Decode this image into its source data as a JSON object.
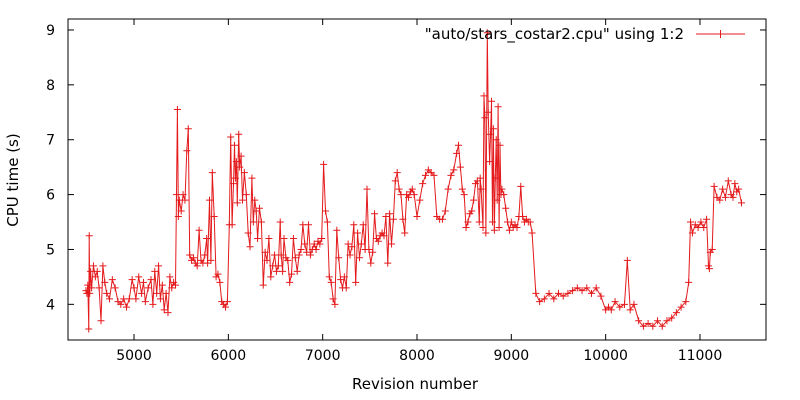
{
  "chart_data": {
    "type": "line",
    "xlabel": "Revision number",
    "ylabel": "CPU time (s)",
    "xlim": [
      4300,
      11700
    ],
    "ylim": [
      3.35,
      9.2
    ],
    "xticks": [
      5000,
      6000,
      7000,
      8000,
      9000,
      10000,
      11000
    ],
    "yticks": [
      4,
      5,
      6,
      7,
      8,
      9
    ],
    "grid": false,
    "legend_position": "top-right",
    "color": "#e41a1c",
    "marker": "plus",
    "series": [
      {
        "name": "\"auto/stars_costar2.cpu\" using 1:2",
        "points": [
          [
            4490,
            4.25
          ],
          [
            4500,
            4.2
          ],
          [
            4510,
            4.35
          ],
          [
            4520,
            3.55
          ],
          [
            4525,
            5.25
          ],
          [
            4530,
            4.2
          ],
          [
            4540,
            4.6
          ],
          [
            4550,
            4.3
          ],
          [
            4570,
            4.7
          ],
          [
            4590,
            4.5
          ],
          [
            4610,
            4.6
          ],
          [
            4630,
            4.3
          ],
          [
            4650,
            3.7
          ],
          [
            4670,
            4.7
          ],
          [
            4690,
            4.4
          ],
          [
            4710,
            4.2
          ],
          [
            4740,
            4.1
          ],
          [
            4770,
            4.45
          ],
          [
            4800,
            4.3
          ],
          [
            4830,
            4.05
          ],
          [
            4860,
            4.0
          ],
          [
            4890,
            4.1
          ],
          [
            4920,
            3.95
          ],
          [
            4950,
            4.1
          ],
          [
            4980,
            4.45
          ],
          [
            5000,
            4.3
          ],
          [
            5020,
            4.1
          ],
          [
            5050,
            4.5
          ],
          [
            5080,
            4.2
          ],
          [
            5100,
            4.4
          ],
          [
            5120,
            4.05
          ],
          [
            5150,
            4.3
          ],
          [
            5180,
            4.45
          ],
          [
            5200,
            4.0
          ],
          [
            5220,
            4.6
          ],
          [
            5240,
            4.2
          ],
          [
            5260,
            4.7
          ],
          [
            5280,
            4.1
          ],
          [
            5300,
            4.35
          ],
          [
            5320,
            3.9
          ],
          [
            5340,
            4.2
          ],
          [
            5360,
            3.85
          ],
          [
            5380,
            4.5
          ],
          [
            5400,
            4.3
          ],
          [
            5420,
            4.4
          ],
          [
            5440,
            4.35
          ],
          [
            5450,
            6.0
          ],
          [
            5460,
            7.55
          ],
          [
            5470,
            5.6
          ],
          [
            5480,
            5.9
          ],
          [
            5500,
            5.7
          ],
          [
            5520,
            6.0
          ],
          [
            5540,
            5.9
          ],
          [
            5560,
            6.8
          ],
          [
            5575,
            7.2
          ],
          [
            5590,
            4.9
          ],
          [
            5610,
            4.8
          ],
          [
            5630,
            4.85
          ],
          [
            5650,
            4.75
          ],
          [
            5670,
            4.7
          ],
          [
            5690,
            5.35
          ],
          [
            5710,
            4.8
          ],
          [
            5730,
            4.75
          ],
          [
            5750,
            4.9
          ],
          [
            5770,
            5.2
          ],
          [
            5780,
            4.75
          ],
          [
            5800,
            5.9
          ],
          [
            5815,
            4.8
          ],
          [
            5830,
            6.4
          ],
          [
            5850,
            5.6
          ],
          [
            5870,
            4.5
          ],
          [
            5890,
            4.55
          ],
          [
            5910,
            4.4
          ],
          [
            5930,
            4.05
          ],
          [
            5950,
            4.0
          ],
          [
            5970,
            3.95
          ],
          [
            5990,
            4.05
          ],
          [
            6010,
            5.45
          ],
          [
            6025,
            7.05
          ],
          [
            6040,
            5.45
          ],
          [
            6055,
            6.2
          ],
          [
            6065,
            6.9
          ],
          [
            6075,
            6.3
          ],
          [
            6085,
            6.6
          ],
          [
            6095,
            5.85
          ],
          [
            6110,
            7.1
          ],
          [
            6120,
            6.5
          ],
          [
            6135,
            6.7
          ],
          [
            6150,
            5.9
          ],
          [
            6170,
            6.4
          ],
          [
            6190,
            6.0
          ],
          [
            6210,
            5.3
          ],
          [
            6230,
            5.05
          ],
          [
            6250,
            6.3
          ],
          [
            6265,
            5.5
          ],
          [
            6280,
            5.9
          ],
          [
            6295,
            5.7
          ],
          [
            6310,
            5.2
          ],
          [
            6330,
            5.75
          ],
          [
            6350,
            5.5
          ],
          [
            6370,
            4.35
          ],
          [
            6390,
            4.95
          ],
          [
            6410,
            4.8
          ],
          [
            6430,
            5.2
          ],
          [
            6450,
            4.5
          ],
          [
            6470,
            4.7
          ],
          [
            6490,
            4.9
          ],
          [
            6510,
            4.6
          ],
          [
            6530,
            4.7
          ],
          [
            6550,
            5.5
          ],
          [
            6560,
            4.9
          ],
          [
            6575,
            4.6
          ],
          [
            6590,
            5.2
          ],
          [
            6610,
            4.85
          ],
          [
            6630,
            4.8
          ],
          [
            6650,
            4.4
          ],
          [
            6670,
            4.55
          ],
          [
            6690,
            5.2
          ],
          [
            6710,
            4.85
          ],
          [
            6730,
            4.6
          ],
          [
            6750,
            4.9
          ],
          [
            6770,
            5.0
          ],
          [
            6790,
            5.45
          ],
          [
            6810,
            5.1
          ],
          [
            6830,
            4.95
          ],
          [
            6850,
            5.45
          ],
          [
            6870,
            4.9
          ],
          [
            6890,
            5.0
          ],
          [
            6910,
            5.1
          ],
          [
            6930,
            5.0
          ],
          [
            6950,
            5.15
          ],
          [
            6970,
            5.1
          ],
          [
            6990,
            5.2
          ],
          [
            7010,
            6.55
          ],
          [
            7030,
            5.7
          ],
          [
            7050,
            5.5
          ],
          [
            7070,
            4.5
          ],
          [
            7090,
            4.4
          ],
          [
            7110,
            4.1
          ],
          [
            7130,
            4.0
          ],
          [
            7150,
            5.35
          ],
          [
            7170,
            4.85
          ],
          [
            7190,
            4.45
          ],
          [
            7210,
            4.3
          ],
          [
            7230,
            4.5
          ],
          [
            7250,
            4.3
          ],
          [
            7270,
            5.1
          ],
          [
            7290,
            4.9
          ],
          [
            7310,
            5.05
          ],
          [
            7330,
            5.45
          ],
          [
            7350,
            4.4
          ],
          [
            7370,
            5.3
          ],
          [
            7390,
            4.85
          ],
          [
            7410,
            5.1
          ],
          [
            7430,
            5.45
          ],
          [
            7450,
            5.0
          ],
          [
            7470,
            6.1
          ],
          [
            7490,
            5.0
          ],
          [
            7510,
            4.75
          ],
          [
            7530,
            4.95
          ],
          [
            7550,
            5.65
          ],
          [
            7570,
            5.2
          ],
          [
            7590,
            5.15
          ],
          [
            7610,
            5.25
          ],
          [
            7630,
            5.3
          ],
          [
            7650,
            5.25
          ],
          [
            7670,
            5.6
          ],
          [
            7690,
            4.75
          ],
          [
            7710,
            5.65
          ],
          [
            7730,
            5.1
          ],
          [
            7750,
            5.55
          ],
          [
            7770,
            6.25
          ],
          [
            7790,
            6.4
          ],
          [
            7810,
            6.1
          ],
          [
            7830,
            6.0
          ],
          [
            7850,
            5.55
          ],
          [
            7870,
            5.3
          ],
          [
            7890,
            6.0
          ],
          [
            7910,
            5.95
          ],
          [
            7930,
            6.05
          ],
          [
            7950,
            6.1
          ],
          [
            7970,
            6.0
          ],
          [
            8000,
            5.6
          ],
          [
            8030,
            5.9
          ],
          [
            8060,
            6.2
          ],
          [
            8090,
            6.35
          ],
          [
            8120,
            6.45
          ],
          [
            8150,
            6.4
          ],
          [
            8180,
            6.35
          ],
          [
            8210,
            5.6
          ],
          [
            8240,
            5.55
          ],
          [
            8270,
            5.55
          ],
          [
            8300,
            5.7
          ],
          [
            8330,
            6.1
          ],
          [
            8360,
            6.35
          ],
          [
            8390,
            6.45
          ],
          [
            8420,
            6.75
          ],
          [
            8440,
            6.9
          ],
          [
            8460,
            6.5
          ],
          [
            8480,
            6.1
          ],
          [
            8500,
            6.0
          ],
          [
            8520,
            5.4
          ],
          [
            8540,
            5.5
          ],
          [
            8560,
            5.65
          ],
          [
            8580,
            5.7
          ],
          [
            8600,
            5.9
          ],
          [
            8620,
            6.2
          ],
          [
            8640,
            6.25
          ],
          [
            8660,
            5.5
          ],
          [
            8670,
            6.3
          ],
          [
            8680,
            6.1
          ],
          [
            8700,
            5.4
          ],
          [
            8710,
            7.8
          ],
          [
            8720,
            7.4
          ],
          [
            8730,
            5.3
          ],
          [
            8745,
            8.95
          ],
          [
            8755,
            7.5
          ],
          [
            8770,
            6.6
          ],
          [
            8780,
            7.1
          ],
          [
            8790,
            7.7
          ],
          [
            8800,
            5.5
          ],
          [
            8810,
            7.2
          ],
          [
            8820,
            5.35
          ],
          [
            8830,
            6.3
          ],
          [
            8840,
            7.0
          ],
          [
            8850,
            5.9
          ],
          [
            8860,
            7.6
          ],
          [
            8870,
            5.4
          ],
          [
            8880,
            6.9
          ],
          [
            8890,
            6.0
          ],
          [
            8900,
            6.1
          ],
          [
            8920,
            6.0
          ],
          [
            8940,
            5.75
          ],
          [
            8960,
            5.5
          ],
          [
            8980,
            5.35
          ],
          [
            9000,
            5.5
          ],
          [
            9020,
            5.4
          ],
          [
            9040,
            5.45
          ],
          [
            9060,
            5.4
          ],
          [
            9080,
            5.6
          ],
          [
            9100,
            6.15
          ],
          [
            9120,
            5.6
          ],
          [
            9140,
            5.5
          ],
          [
            9160,
            5.55
          ],
          [
            9180,
            5.5
          ],
          [
            9200,
            5.5
          ],
          [
            9220,
            5.3
          ],
          [
            9260,
            4.2
          ],
          [
            9300,
            4.05
          ],
          [
            9350,
            4.1
          ],
          [
            9400,
            4.2
          ],
          [
            9450,
            4.1
          ],
          [
            9500,
            4.2
          ],
          [
            9550,
            4.15
          ],
          [
            9600,
            4.2
          ],
          [
            9650,
            4.25
          ],
          [
            9700,
            4.3
          ],
          [
            9750,
            4.25
          ],
          [
            9800,
            4.3
          ],
          [
            9850,
            4.2
          ],
          [
            9900,
            4.3
          ],
          [
            9950,
            4.15
          ],
          [
            10000,
            3.9
          ],
          [
            10030,
            3.95
          ],
          [
            10060,
            3.9
          ],
          [
            10100,
            4.05
          ],
          [
            10150,
            3.95
          ],
          [
            10200,
            4.0
          ],
          [
            10230,
            4.8
          ],
          [
            10260,
            3.9
          ],
          [
            10300,
            4.0
          ],
          [
            10350,
            3.7
          ],
          [
            10400,
            3.6
          ],
          [
            10450,
            3.65
          ],
          [
            10500,
            3.6
          ],
          [
            10550,
            3.7
          ],
          [
            10600,
            3.6
          ],
          [
            10650,
            3.7
          ],
          [
            10700,
            3.75
          ],
          [
            10750,
            3.85
          ],
          [
            10800,
            3.95
          ],
          [
            10850,
            4.05
          ],
          [
            10880,
            4.4
          ],
          [
            10900,
            5.5
          ],
          [
            10920,
            5.3
          ],
          [
            10950,
            5.45
          ],
          [
            10980,
            5.4
          ],
          [
            11010,
            5.5
          ],
          [
            11040,
            5.4
          ],
          [
            11070,
            5.55
          ],
          [
            11090,
            4.7
          ],
          [
            11100,
            4.65
          ],
          [
            11110,
            4.95
          ],
          [
            11130,
            5.0
          ],
          [
            11150,
            6.15
          ],
          [
            11180,
            5.95
          ],
          [
            11210,
            5.9
          ],
          [
            11240,
            6.1
          ],
          [
            11270,
            5.95
          ],
          [
            11300,
            6.25
          ],
          [
            11330,
            6.0
          ],
          [
            11350,
            5.95
          ],
          [
            11370,
            6.2
          ],
          [
            11390,
            6.05
          ],
          [
            11410,
            6.1
          ],
          [
            11440,
            5.85
          ]
        ]
      }
    ]
  }
}
